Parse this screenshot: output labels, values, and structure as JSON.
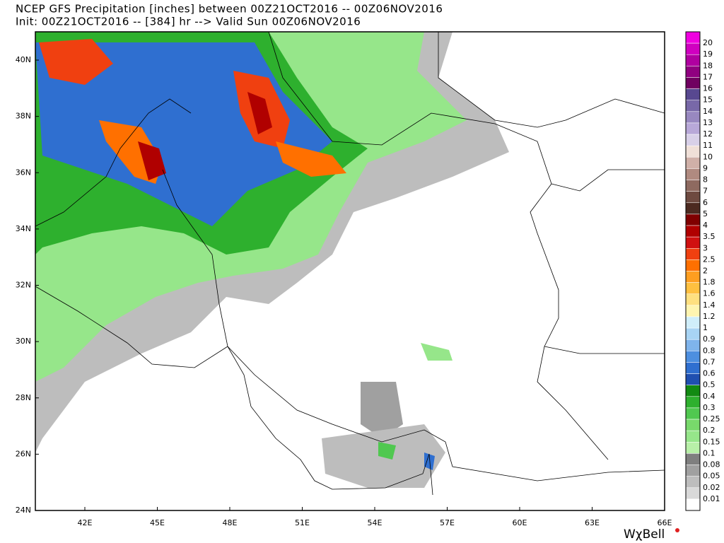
{
  "header": {
    "title_line1": "NCEP GFS Precipitation [inches] between 00Z21OCT2016 -- 00Z06NOV2016",
    "title_line2": "Init: 00Z21OCT2016 -- [384] hr --> Valid Sun 00Z06NOV2016"
  },
  "axes": {
    "lat_labels": [
      "40N",
      "38N",
      "36N",
      "34N",
      "32N",
      "30N",
      "28N",
      "26N",
      "24N"
    ],
    "lon_labels": [
      "42E",
      "45E",
      "48E",
      "51E",
      "54E",
      "57E",
      "60E",
      "63E",
      "66E"
    ]
  },
  "colorbar": {
    "labels": [
      "20",
      "19",
      "18",
      "17",
      "16",
      "15",
      "14",
      "13",
      "12",
      "11",
      "10",
      "9",
      "8",
      "7",
      "6",
      "5",
      "4",
      "3.5",
      "3",
      "2.5",
      "2",
      "1.8",
      "1.6",
      "1.4",
      "1.2",
      "1",
      "0.9",
      "0.8",
      "0.7",
      "0.6",
      "0.5",
      "0.4",
      "0.3",
      "0.25",
      "0.2",
      "0.15",
      "0.1",
      "0.08",
      "0.05",
      "0.02",
      "0.01"
    ],
    "colors": [
      "#f000e0",
      "#d000c0",
      "#b000a0",
      "#900080",
      "#700060",
      "#584890",
      "#7868a8",
      "#9888c0",
      "#b8a8d8",
      "#d8d0e8",
      "#f0e0d8",
      "#d0b0a8",
      "#b08a80",
      "#8e6a60",
      "#6e4a40",
      "#4c2a20",
      "#800000",
      "#b00000",
      "#d01010",
      "#f04010",
      "#ff7000",
      "#ff9e20",
      "#ffc040",
      "#ffe080",
      "#fff5b0",
      "#d0eefa",
      "#a8d4f4",
      "#7fb4ec",
      "#4d8fe0",
      "#2f6fd0",
      "#1f4fb0",
      "#128a12",
      "#2eb02e",
      "#50c850",
      "#78d96b",
      "#96e68a",
      "#b8f0a8",
      "#7f7f7f",
      "#a0a0a0",
      "#bdbdbd",
      "#d9d9d9",
      "#ffffff"
    ]
  },
  "branding": "WχBell"
}
